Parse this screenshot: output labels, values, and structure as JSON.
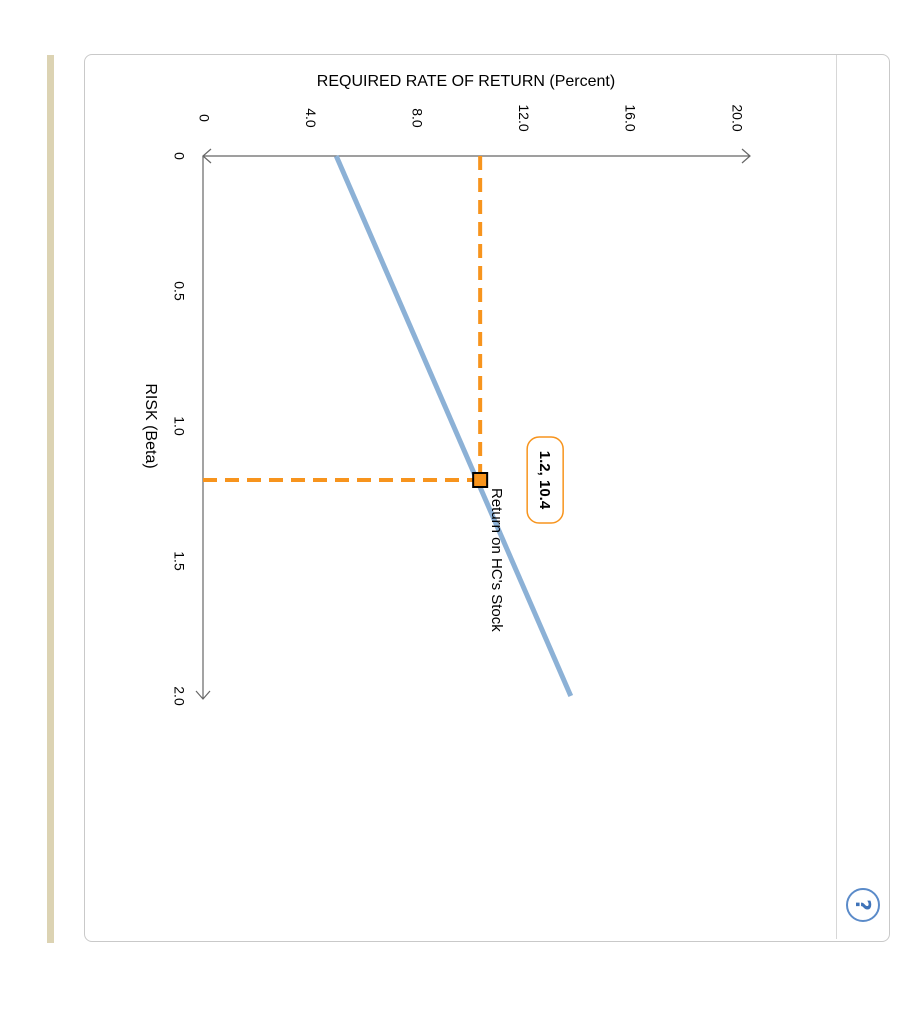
{
  "help": {
    "icon": "help-icon",
    "glyph": "?"
  },
  "chart_data": {
    "type": "line",
    "orientation": "rotated 90° clockwise",
    "xlabel": "RISK (Beta)",
    "ylabel": "REQUIRED RATE OF RETURN (Percent)",
    "x_ticks": [
      {
        "value": 0,
        "label": "0"
      },
      {
        "value": 0.5,
        "label": "0.5"
      },
      {
        "value": 1.0,
        "label": "1.0"
      },
      {
        "value": 1.5,
        "label": "1.5"
      },
      {
        "value": 2.0,
        "label": "2.0"
      }
    ],
    "y_ticks": [
      {
        "value": 0,
        "label": "0"
      },
      {
        "value": 4,
        "label": "4.0"
      },
      {
        "value": 8,
        "label": "8.0"
      },
      {
        "value": 12,
        "label": "12.0"
      },
      {
        "value": 16,
        "label": "16.0"
      },
      {
        "value": 20,
        "label": "20.0"
      }
    ],
    "xlim": [
      0,
      2.0
    ],
    "ylim": [
      0,
      20.0
    ],
    "series": [
      {
        "x": [
          0,
          2.0
        ],
        "y": [
          5.0,
          13.8
        ],
        "color": "#8cb1d6"
      }
    ],
    "point": {
      "x": 1.2,
      "y": 10.4,
      "label": "1.2, 10.4",
      "annotation": "Return on HC's Stock",
      "color": "#f7941d"
    }
  }
}
